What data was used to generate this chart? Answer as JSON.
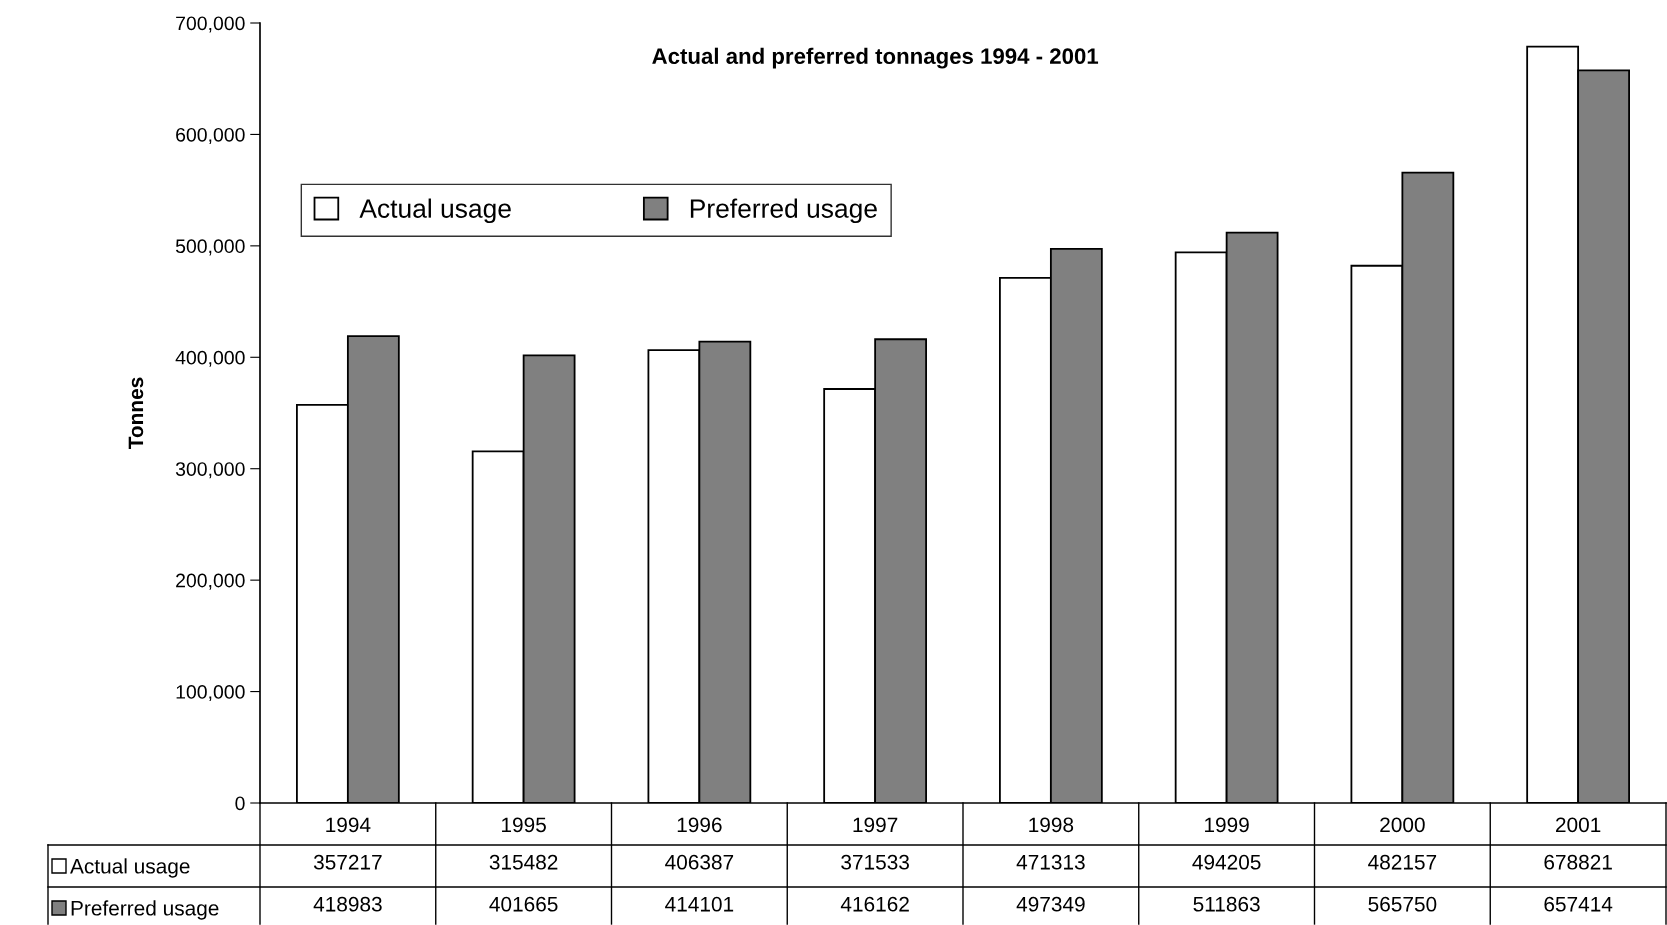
{
  "chart_data": {
    "type": "bar",
    "title": "Actual and preferred tonnages 1994 - 2001",
    "ylabel": "Tonnes",
    "categories": [
      "1994",
      "1995",
      "1996",
      "1997",
      "1998",
      "1999",
      "2000",
      "2001"
    ],
    "series": [
      {
        "name": "Actual usage",
        "color": "#ffffff",
        "values": [
          357217,
          315482,
          406387,
          371533,
          471313,
          494205,
          482157,
          678821
        ]
      },
      {
        "name": "Preferred usage",
        "color": "#808080",
        "values": [
          418983,
          401665,
          414101,
          416162,
          497349,
          511863,
          565750,
          657414
        ]
      }
    ],
    "ylim": [
      0,
      700000
    ],
    "yticks": [
      {
        "value": 0,
        "label": "0"
      },
      {
        "value": 100000,
        "label": "100,000"
      },
      {
        "value": 200000,
        "label": "200,000"
      },
      {
        "value": 300000,
        "label": "300,000"
      },
      {
        "value": 400000,
        "label": "400,000"
      },
      {
        "value": 500000,
        "label": "500,000"
      },
      {
        "value": 600000,
        "label": "600,000"
      },
      {
        "value": 700000,
        "label": "700,000"
      }
    ],
    "grid": false,
    "legend": "top left",
    "data_labels": true
  }
}
